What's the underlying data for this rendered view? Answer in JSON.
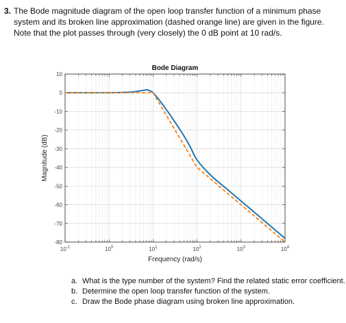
{
  "problem": {
    "number": "3.",
    "text": "The Bode magnitude diagram of the open loop transfer function of a minimum phase system and its broken line approximation (dashed orange line) are given in the figure. Note that the plot passes through (very closely) the 0 dB point at 10 rad/s."
  },
  "chart_data": {
    "type": "line",
    "title": "Bode Diagram",
    "xlabel": "Frequency (rad/s)",
    "ylabel": "Magnitude (dB)",
    "x_scale": "log",
    "xlim": [
      0.1,
      10000
    ],
    "ylim": [
      -80,
      10
    ],
    "grid": true,
    "x_ticks": [
      0.1,
      1,
      10,
      100,
      1000,
      10000
    ],
    "x_tick_labels": [
      {
        "base": "10",
        "exp": "-1"
      },
      {
        "base": "10",
        "exp": "0"
      },
      {
        "base": "10",
        "exp": "1"
      },
      {
        "base": "10",
        "exp": "2"
      },
      {
        "base": "10",
        "exp": "3"
      },
      {
        "base": "10",
        "exp": "4"
      }
    ],
    "y_ticks": [
      10,
      0,
      -10,
      -20,
      -30,
      -40,
      -50,
      -60,
      -70,
      -80
    ],
    "y_tick_labels": [
      "10",
      "0",
      "-10",
      "-20",
      "-30",
      "-40",
      "-50",
      "-60",
      "-70",
      "-80"
    ],
    "series": [
      {
        "id": "exact",
        "color": "#1f77b4",
        "style": "solid",
        "x": [
          0.1,
          1,
          3,
          5,
          7,
          8,
          10,
          15,
          20,
          30,
          50,
          70,
          100,
          200,
          500,
          1000,
          2000,
          5000,
          10000
        ],
        "y": [
          0,
          0,
          0.3,
          1,
          1.5,
          1.3,
          0,
          -5,
          -9,
          -15,
          -23,
          -29,
          -36,
          -44,
          -52,
          -58,
          -64,
          -72,
          -78
        ]
      },
      {
        "id": "asymptotic",
        "color": "#ff7f0e",
        "style": "dashed",
        "x": [
          0.1,
          10,
          100,
          10000
        ],
        "y": [
          0,
          0,
          -40,
          -80
        ]
      }
    ]
  },
  "questions": [
    {
      "label": "a.",
      "text": "What is the type number of the system? Find the related static error coefficient."
    },
    {
      "label": "b.",
      "text": "Determine the open loop transfer function of the system."
    },
    {
      "label": "c.",
      "text": "Draw the Bode phase diagram using broken line approximation."
    }
  ]
}
